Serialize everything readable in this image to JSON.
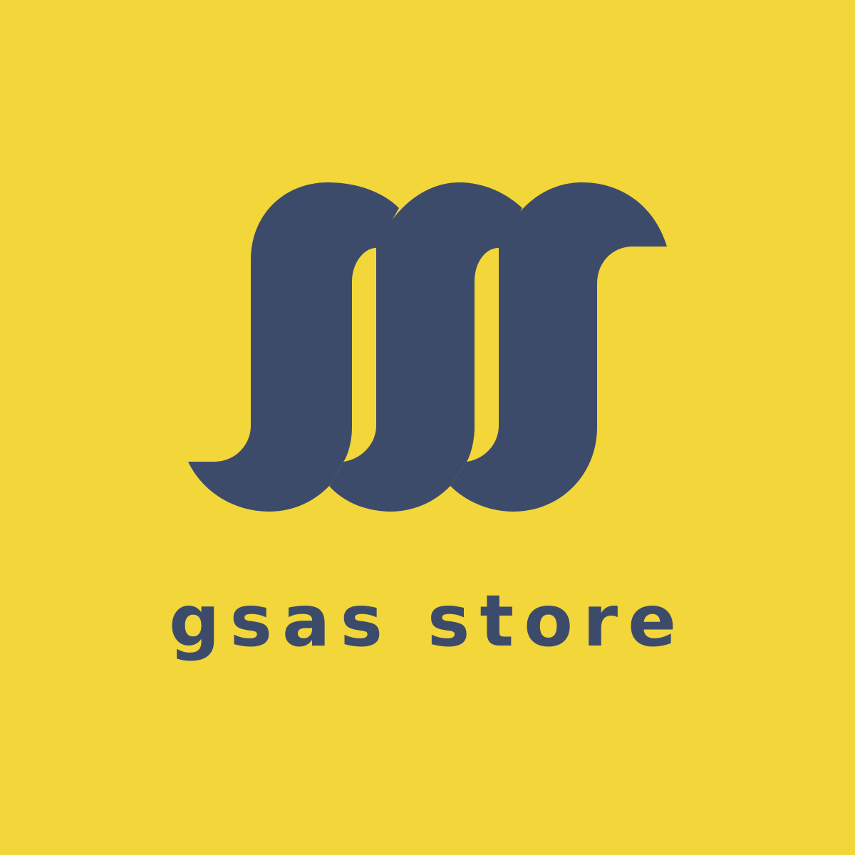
{
  "brand": {
    "wordmark": "gsas store",
    "logo_icon": "triple-wave-s-mark-icon"
  },
  "colors": {
    "background": "#F2D63A",
    "primary": "#3D4B6B"
  }
}
